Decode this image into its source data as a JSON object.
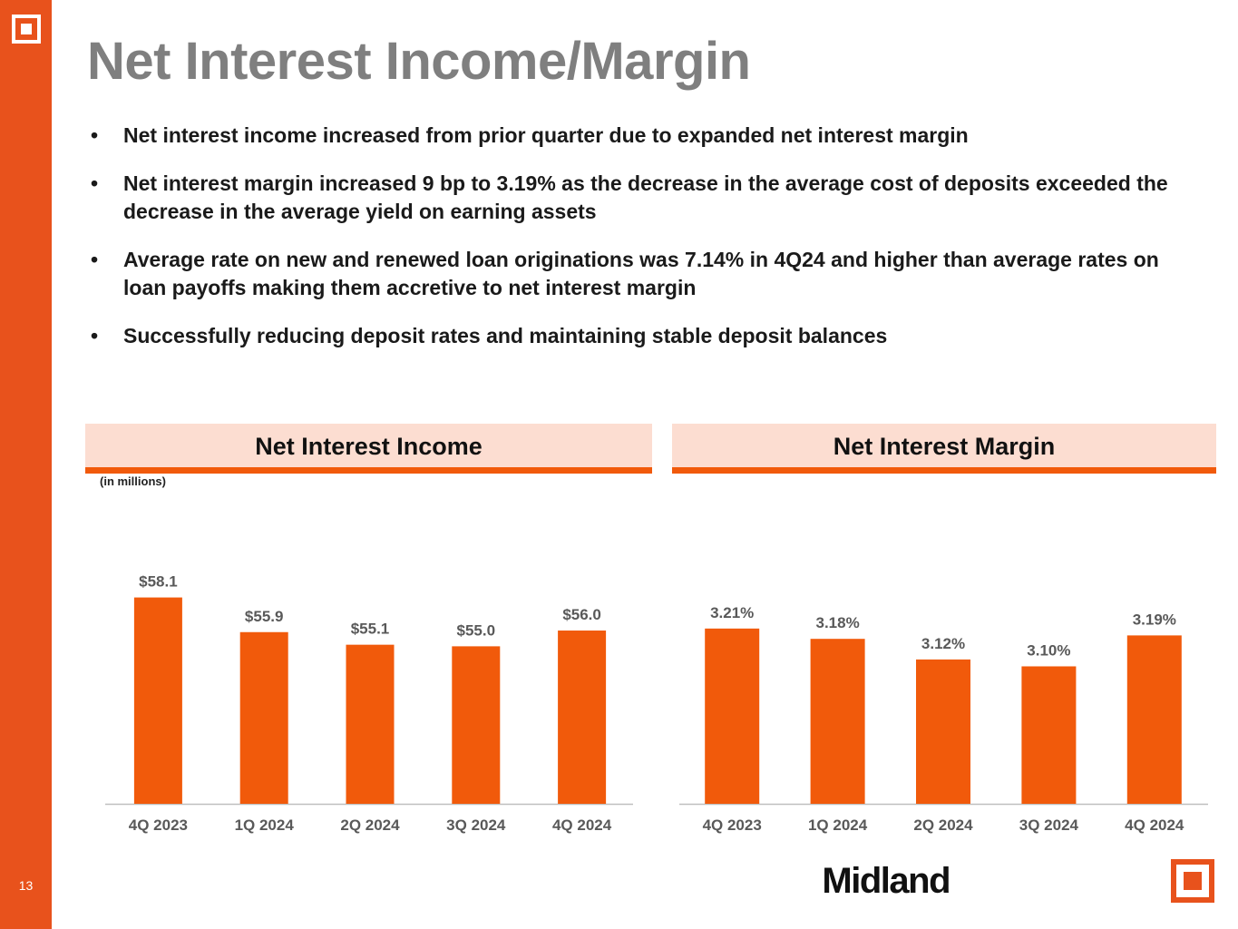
{
  "page": {
    "title": "Net Interest Income/Margin",
    "page_number": "13",
    "bullets": [
      "Net interest income increased from prior quarter due to expanded net interest margin",
      "Net interest margin increased 9 bp to 3.19% as the decrease in the average cost of deposits exceeded the decrease in the average yield on earning assets",
      "Average rate on new and renewed loan originations was 7.14% in 4Q24 and higher than average rates on loan payoffs making them accretive to net interest margin",
      "Successfully reducing deposit rates and maintaining stable deposit balances"
    ],
    "bullet_glyph": "•",
    "brand_name": "Midland",
    "units_note": "(in millions)"
  },
  "colors": {
    "accent": "#e8521c",
    "bar": "#f15a0b",
    "header_fill": "#fcddd1",
    "title_gray": "#7f7f7f"
  },
  "chart_data": [
    {
      "type": "bar",
      "title": "Net Interest Income",
      "units_note": "(in millions)",
      "categories": [
        "4Q 2023",
        "1Q 2024",
        "2Q 2024",
        "3Q 2024",
        "4Q 2024"
      ],
      "values": [
        58.1,
        55.9,
        55.1,
        55.0,
        56.0
      ],
      "data_labels": [
        "$58.1",
        "$55.9",
        "$55.1",
        "$55.0",
        "$56.0"
      ],
      "ylim": [
        45.0,
        59.4
      ],
      "grid": false,
      "legend": "none"
    },
    {
      "type": "bar",
      "title": "Net Interest Margin",
      "categories": [
        "4Q 2023",
        "1Q 2024",
        "2Q 2024",
        "3Q 2024",
        "4Q 2024"
      ],
      "values": [
        3.21,
        3.18,
        3.12,
        3.1,
        3.19
      ],
      "data_labels": [
        "3.21%",
        "3.18%",
        "3.12%",
        "3.10%",
        "3.19%"
      ],
      "ylim": [
        2.7,
        3.36
      ],
      "grid": false,
      "legend": "none"
    }
  ]
}
